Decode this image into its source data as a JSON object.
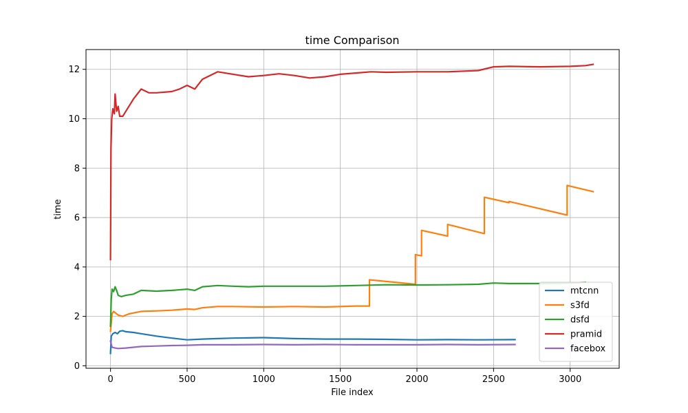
{
  "chart_data": {
    "type": "line",
    "title": "time Comparison",
    "xlabel": "File index",
    "ylabel": "time",
    "xlim": [
      -160,
      3320
    ],
    "ylim": [
      -0.1,
      12.8
    ],
    "xticks": [
      0,
      500,
      1000,
      1500,
      2000,
      2500,
      3000
    ],
    "yticks": [
      0,
      2,
      4,
      6,
      8,
      10,
      12
    ],
    "grid": true,
    "legend_position": "lower-right",
    "series": [
      {
        "name": "mtcnn",
        "color": "#1f77b4",
        "points": [
          [
            0,
            0.5
          ],
          [
            5,
            1.2
          ],
          [
            15,
            1.3
          ],
          [
            30,
            1.35
          ],
          [
            45,
            1.3
          ],
          [
            60,
            1.4
          ],
          [
            80,
            1.42
          ],
          [
            100,
            1.38
          ],
          [
            150,
            1.35
          ],
          [
            200,
            1.3
          ],
          [
            300,
            1.2
          ],
          [
            400,
            1.12
          ],
          [
            500,
            1.05
          ],
          [
            600,
            1.08
          ],
          [
            700,
            1.1
          ],
          [
            800,
            1.12
          ],
          [
            900,
            1.13
          ],
          [
            1000,
            1.14
          ],
          [
            1200,
            1.1
          ],
          [
            1400,
            1.08
          ],
          [
            1600,
            1.08
          ],
          [
            1800,
            1.07
          ],
          [
            2000,
            1.05
          ],
          [
            2200,
            1.06
          ],
          [
            2400,
            1.05
          ],
          [
            2640,
            1.06
          ]
        ]
      },
      {
        "name": "s3fd",
        "color": "#ff7f0e",
        "points": [
          [
            0,
            1.4
          ],
          [
            10,
            2.1
          ],
          [
            20,
            2.2
          ],
          [
            30,
            2.15
          ],
          [
            50,
            2.05
          ],
          [
            80,
            2.0
          ],
          [
            120,
            2.1
          ],
          [
            200,
            2.2
          ],
          [
            300,
            2.22
          ],
          [
            400,
            2.25
          ],
          [
            500,
            2.3
          ],
          [
            550,
            2.28
          ],
          [
            600,
            2.35
          ],
          [
            700,
            2.4
          ],
          [
            800,
            2.4
          ],
          [
            1000,
            2.38
          ],
          [
            1200,
            2.4
          ],
          [
            1400,
            2.38
          ],
          [
            1600,
            2.42
          ],
          [
            1690,
            2.42
          ],
          [
            1690,
            3.48
          ],
          [
            1990,
            3.3
          ],
          [
            1990,
            4.5
          ],
          [
            2030,
            4.45
          ],
          [
            2030,
            5.48
          ],
          [
            2200,
            5.25
          ],
          [
            2200,
            5.72
          ],
          [
            2440,
            5.35
          ],
          [
            2440,
            6.82
          ],
          [
            2600,
            6.6
          ],
          [
            2600,
            6.65
          ],
          [
            2980,
            6.1
          ],
          [
            2980,
            7.3
          ],
          [
            3150,
            7.05
          ]
        ]
      },
      {
        "name": "dsfd",
        "color": "#2ca02c",
        "points": [
          [
            0,
            1.6
          ],
          [
            5,
            2.7
          ],
          [
            10,
            3.1
          ],
          [
            20,
            3.0
          ],
          [
            30,
            3.2
          ],
          [
            40,
            3.05
          ],
          [
            50,
            2.85
          ],
          [
            70,
            2.8
          ],
          [
            100,
            2.85
          ],
          [
            150,
            2.9
          ],
          [
            200,
            3.05
          ],
          [
            300,
            3.02
          ],
          [
            400,
            3.05
          ],
          [
            500,
            3.1
          ],
          [
            550,
            3.05
          ],
          [
            600,
            3.2
          ],
          [
            700,
            3.25
          ],
          [
            800,
            3.22
          ],
          [
            900,
            3.2
          ],
          [
            1000,
            3.22
          ],
          [
            1200,
            3.22
          ],
          [
            1400,
            3.22
          ],
          [
            1600,
            3.25
          ],
          [
            1800,
            3.28
          ],
          [
            2000,
            3.27
          ],
          [
            2200,
            3.28
          ],
          [
            2400,
            3.3
          ],
          [
            2500,
            3.35
          ],
          [
            2600,
            3.33
          ],
          [
            2800,
            3.33
          ],
          [
            3000,
            3.35
          ],
          [
            3100,
            3.38
          ]
        ]
      },
      {
        "name": "pramid",
        "color": "#d62728",
        "points": [
          [
            0,
            4.3
          ],
          [
            3,
            8.8
          ],
          [
            8,
            10.0
          ],
          [
            15,
            10.4
          ],
          [
            25,
            10.2
          ],
          [
            30,
            11.0
          ],
          [
            40,
            10.3
          ],
          [
            50,
            10.5
          ],
          [
            60,
            10.1
          ],
          [
            80,
            10.1
          ],
          [
            100,
            10.3
          ],
          [
            150,
            10.8
          ],
          [
            200,
            11.2
          ],
          [
            250,
            11.05
          ],
          [
            300,
            11.05
          ],
          [
            400,
            11.1
          ],
          [
            450,
            11.2
          ],
          [
            500,
            11.35
          ],
          [
            550,
            11.2
          ],
          [
            600,
            11.6
          ],
          [
            700,
            11.9
          ],
          [
            800,
            11.8
          ],
          [
            900,
            11.7
          ],
          [
            1000,
            11.75
          ],
          [
            1100,
            11.82
          ],
          [
            1200,
            11.75
          ],
          [
            1300,
            11.65
          ],
          [
            1400,
            11.7
          ],
          [
            1500,
            11.8
          ],
          [
            1600,
            11.85
          ],
          [
            1700,
            11.9
          ],
          [
            1800,
            11.88
          ],
          [
            2000,
            11.9
          ],
          [
            2200,
            11.9
          ],
          [
            2400,
            11.95
          ],
          [
            2500,
            12.1
          ],
          [
            2600,
            12.12
          ],
          [
            2800,
            12.1
          ],
          [
            3000,
            12.12
          ],
          [
            3100,
            12.15
          ],
          [
            3150,
            12.2
          ]
        ]
      },
      {
        "name": "facebox",
        "color": "#9467bd",
        "points": [
          [
            0,
            1.0
          ],
          [
            10,
            0.75
          ],
          [
            30,
            0.72
          ],
          [
            50,
            0.7
          ],
          [
            100,
            0.72
          ],
          [
            200,
            0.78
          ],
          [
            300,
            0.8
          ],
          [
            400,
            0.82
          ],
          [
            500,
            0.83
          ],
          [
            600,
            0.85
          ],
          [
            800,
            0.85
          ],
          [
            1000,
            0.86
          ],
          [
            1200,
            0.85
          ],
          [
            1400,
            0.86
          ],
          [
            1600,
            0.85
          ],
          [
            1800,
            0.85
          ],
          [
            2000,
            0.85
          ],
          [
            2200,
            0.86
          ],
          [
            2400,
            0.85
          ],
          [
            2640,
            0.86
          ]
        ]
      }
    ]
  }
}
